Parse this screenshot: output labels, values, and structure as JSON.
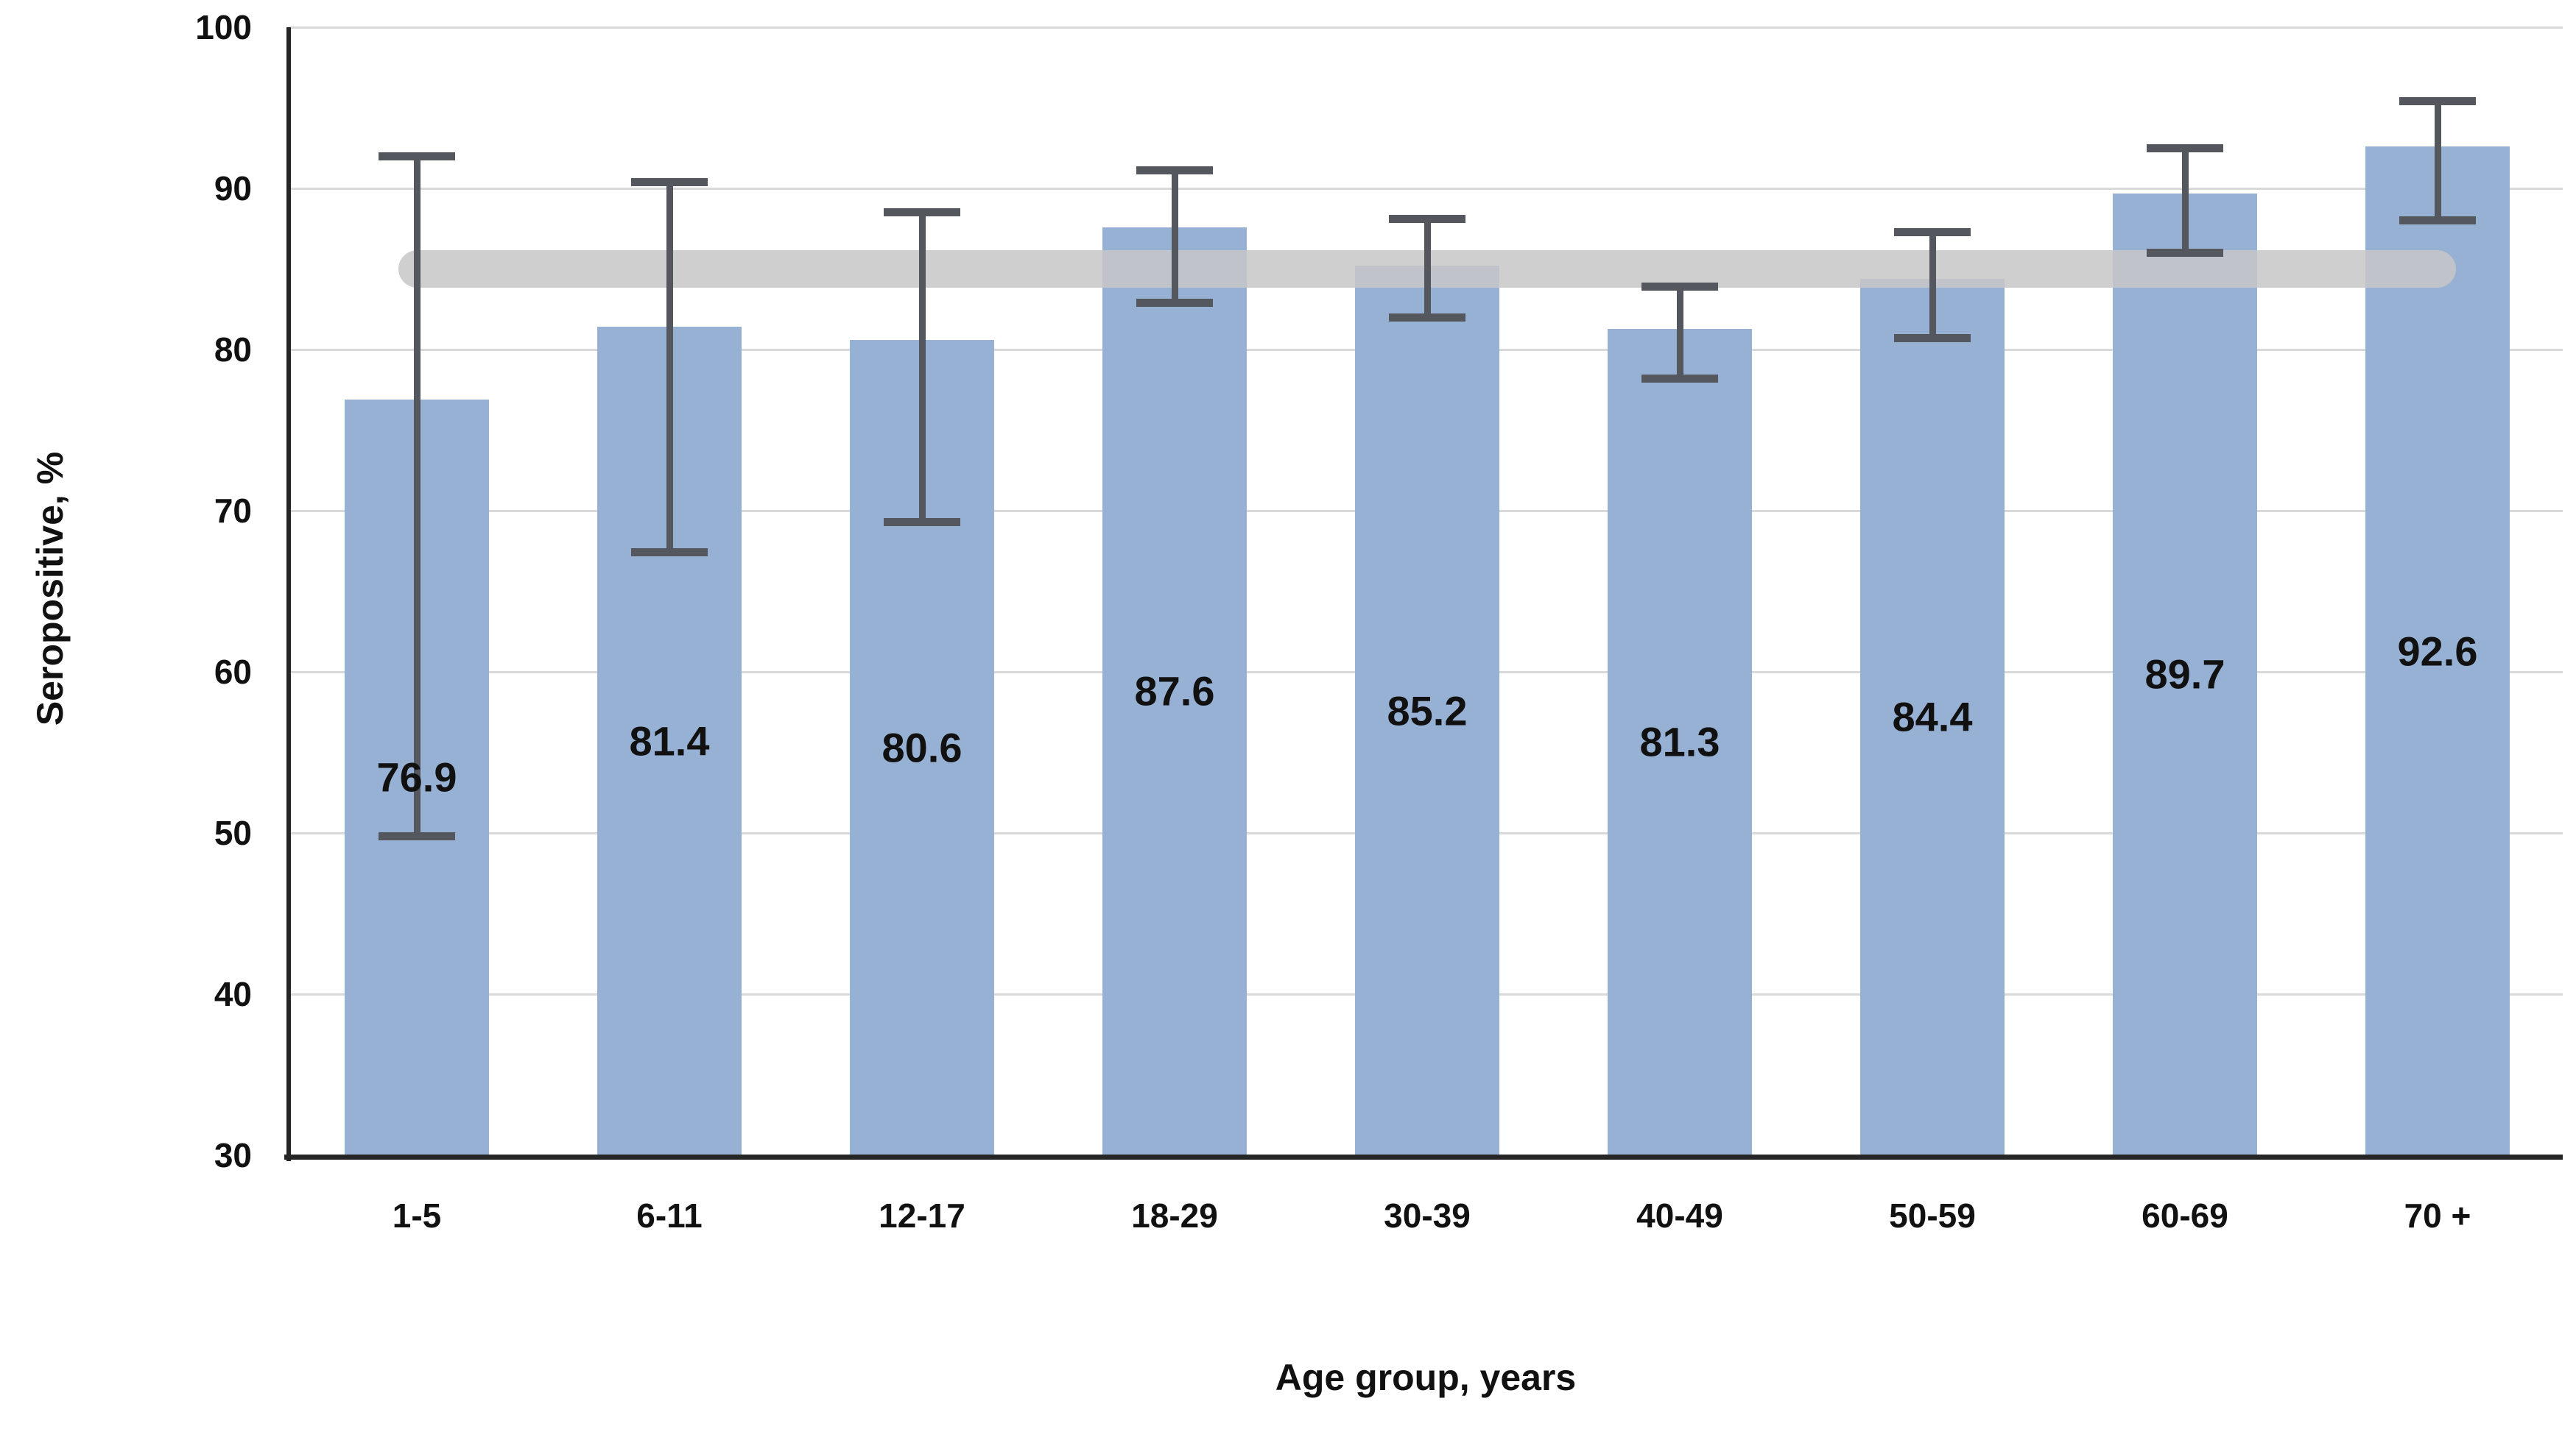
{
  "chart_data": {
    "type": "bar",
    "title": "",
    "xlabel": "Age group, years",
    "ylabel": "Seropositive, %",
    "categories": [
      "1-5",
      "6-11",
      "12-17",
      "18-29",
      "30-39",
      "40-49",
      "50-59",
      "60-69",
      "70 +"
    ],
    "values": [
      76.9,
      81.4,
      80.6,
      87.6,
      85.2,
      81.3,
      84.4,
      89.7,
      92.6
    ],
    "value_labels": [
      "76.9",
      "81.4",
      "80.6",
      "87.6",
      "85.2",
      "81.3",
      "84.4",
      "89.7",
      "92.6"
    ],
    "error_high": [
      92.0,
      90.4,
      88.5,
      91.1,
      88.1,
      83.9,
      87.3,
      92.5,
      95.4
    ],
    "error_low": [
      49.8,
      67.4,
      69.3,
      82.9,
      82.0,
      78.2,
      80.7,
      86.0,
      88.0
    ],
    "ylim": [
      30,
      100
    ],
    "ytick_values": [
      30,
      40,
      50,
      60,
      70,
      80,
      90,
      100
    ],
    "grid": true,
    "legend": false,
    "value_label_position": "inside-center",
    "reference_band": {
      "value": 85,
      "thickness_units": 2.3,
      "spans": "from first bar center to last bar center",
      "shape": "rounded-cap horizontal band"
    },
    "colors": {
      "bar": "#97B1D4",
      "error_bar": "#54585E",
      "reference_band": "#CFCFCF",
      "gridline": "#D9D9D9",
      "axis": "#262626",
      "text": "#111111"
    }
  }
}
